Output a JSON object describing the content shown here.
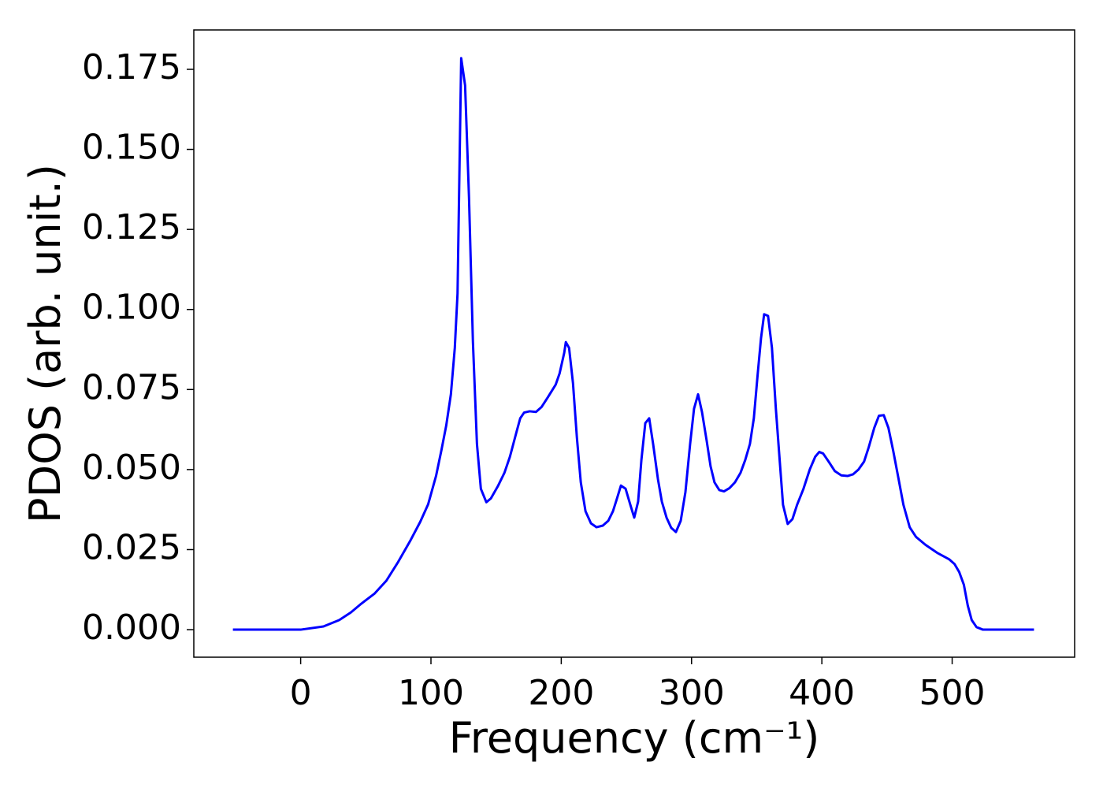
{
  "chart_data": {
    "type": "line",
    "x_label": "Frequency (cm⁻¹)",
    "y_label": "PDOS (arb. unit.)",
    "xlim": [
      -82,
      594
    ],
    "ylim": [
      -0.0086,
      0.1873
    ],
    "xticks": [
      0,
      100,
      200,
      300,
      400,
      500
    ],
    "yticks": [
      {
        "value": 0,
        "label": "0.000"
      },
      {
        "value": 0.025,
        "label": "0.025"
      },
      {
        "value": 0.05,
        "label": "0.050"
      },
      {
        "value": 0.075,
        "label": "0.075"
      },
      {
        "value": 0.1,
        "label": "0.100"
      },
      {
        "value": 0.125,
        "label": "0.125"
      },
      {
        "value": 0.15,
        "label": "0.150"
      },
      {
        "value": 0.175,
        "label": "0.175"
      }
    ],
    "grid": false,
    "series": [
      {
        "color": "#0000ff",
        "x": [
          -52,
          0,
          17.5,
          29.6,
          38.6,
          46.5,
          56.8,
          65.8,
          74.9,
          83.9,
          91.8,
          97.8,
          103.9,
          108,
          111.7,
          115.3,
          118.3,
          120.4,
          123.2,
          126.2,
          129.2,
          132.2,
          135.3,
          138.3,
          142.5,
          146,
          151.6,
          156.4,
          160.6,
          165.5,
          168.5,
          171.5,
          175.7,
          180.6,
          184.8,
          189.6,
          195.7,
          198.7,
          202.3,
          203.5,
          206,
          209,
          212,
          215,
          218.6,
          222.8,
          227,
          231.9,
          236.1,
          239.7,
          242.8,
          245.8,
          249.4,
          253,
          256,
          259,
          261.5,
          264.5,
          267.5,
          270.5,
          274.2,
          277.2,
          280.8,
          284.4,
          288,
          291.7,
          295.3,
          298.9,
          301.9,
          305,
          308,
          311.6,
          314.6,
          317.6,
          321.3,
          324.9,
          329.1,
          333.3,
          337.6,
          341.2,
          344.8,
          347.8,
          350.8,
          353.3,
          355.7,
          358.7,
          361.7,
          364.7,
          367.8,
          370.2,
          373.8,
          377.4,
          381,
          385.9,
          390.7,
          394.9,
          398,
          401,
          405.2,
          410,
          414.9,
          419.7,
          423.9,
          428.1,
          432.4,
          436,
          440.2,
          443.8,
          447.5,
          451.1,
          454.7,
          458.9,
          462.6,
          467.4,
          472.2,
          479.5,
          488.5,
          497.6,
          501.8,
          505.4,
          509,
          512,
          515,
          518.7,
          523.6,
          562.8
        ],
        "values": [
          0,
          0,
          0.001,
          0.003,
          0.0054,
          0.0081,
          0.0113,
          0.0153,
          0.0212,
          0.0276,
          0.0337,
          0.0391,
          0.048,
          0.056,
          0.0637,
          0.0735,
          0.088,
          0.105,
          0.1785,
          0.17,
          0.135,
          0.09,
          0.058,
          0.044,
          0.0398,
          0.041,
          0.045,
          0.049,
          0.054,
          0.0615,
          0.066,
          0.0678,
          0.0682,
          0.068,
          0.0695,
          0.0725,
          0.0765,
          0.08,
          0.0865,
          0.0898,
          0.088,
          0.077,
          0.06,
          0.046,
          0.037,
          0.0332,
          0.032,
          0.0325,
          0.034,
          0.037,
          0.041,
          0.045,
          0.044,
          0.039,
          0.035,
          0.04,
          0.053,
          0.0645,
          0.066,
          0.058,
          0.047,
          0.04,
          0.035,
          0.0318,
          0.0305,
          0.034,
          0.043,
          0.058,
          0.069,
          0.0735,
          0.068,
          0.059,
          0.051,
          0.046,
          0.0436,
          0.0432,
          0.0442,
          0.046,
          0.049,
          0.053,
          0.058,
          0.066,
          0.08,
          0.091,
          0.0985,
          0.098,
          0.088,
          0.069,
          0.052,
          0.039,
          0.033,
          0.0345,
          0.039,
          0.044,
          0.05,
          0.054,
          0.0555,
          0.055,
          0.0525,
          0.0495,
          0.0482,
          0.048,
          0.0485,
          0.05,
          0.0525,
          0.057,
          0.063,
          0.0668,
          0.067,
          0.063,
          0.056,
          0.047,
          0.039,
          0.032,
          0.029,
          0.0265,
          0.024,
          0.022,
          0.0205,
          0.018,
          0.014,
          0.0075,
          0.003,
          0.0008,
          0,
          0
        ]
      }
    ]
  }
}
